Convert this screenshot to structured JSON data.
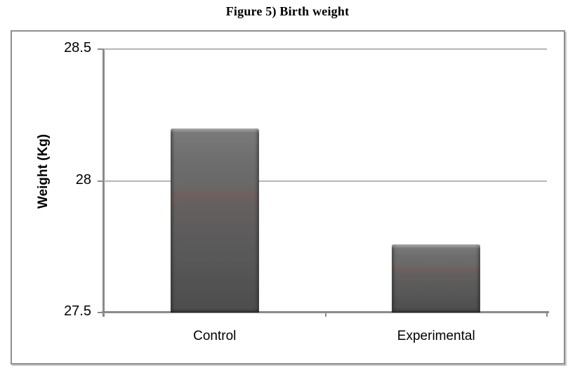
{
  "figure": {
    "title": "Figure 5) Birth weight"
  },
  "chart_data": {
    "type": "bar",
    "title": "Figure 5) Birth weight",
    "categories": [
      "Control",
      "Experimental"
    ],
    "values": [
      28.2,
      27.76
    ],
    "xlabel": "",
    "ylabel": "Weight (Kg)",
    "ylim": [
      27.5,
      28.5
    ],
    "yticks": [
      27.5,
      28,
      28.5
    ],
    "ytick_labels": [
      "27.5",
      "28",
      "28.5"
    ],
    "grid": true,
    "legend": false,
    "bar_color": "#5a5a5a",
    "axis_color": "#8a8a8a",
    "gridline_color": "#aaaaaa"
  }
}
